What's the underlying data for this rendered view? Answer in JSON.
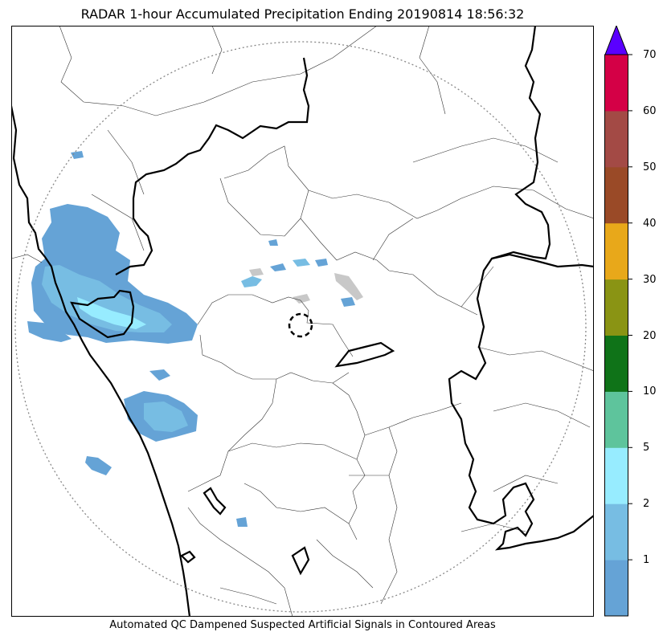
{
  "title": "RADAR 1-hour Accumulated Precipitation Ending 20190814 18:56:32",
  "caption": "Automated QC Dampened Suspected Artificial Signals in Contoured Areas",
  "colorbar": {
    "extend": "max",
    "extend_color": "#5a00ff",
    "bins": [
      {
        "color": "#65a3d6"
      },
      {
        "color": "#77bde3"
      },
      {
        "color": "#97ecff"
      },
      {
        "color": "#5ec49c"
      },
      {
        "color": "#0f7318"
      },
      {
        "color": "#8a9414"
      },
      {
        "color": "#e8a81a"
      },
      {
        "color": "#9a4a27"
      },
      {
        "color": "#a34a45"
      },
      {
        "color": "#d40046"
      }
    ],
    "ticks": [
      "1",
      "2",
      "5",
      "10",
      "20",
      "30",
      "40",
      "50",
      "60",
      "70"
    ]
  },
  "map": {
    "colors": {
      "rain_light": "#65a3d6",
      "rain_medium": "#77bde3",
      "rain_heavy": "#97ecff",
      "suppressed": "#c8c8c8",
      "border_bold": "#000000",
      "border_thin": "#333333",
      "range_ring": "#888888"
    }
  }
}
